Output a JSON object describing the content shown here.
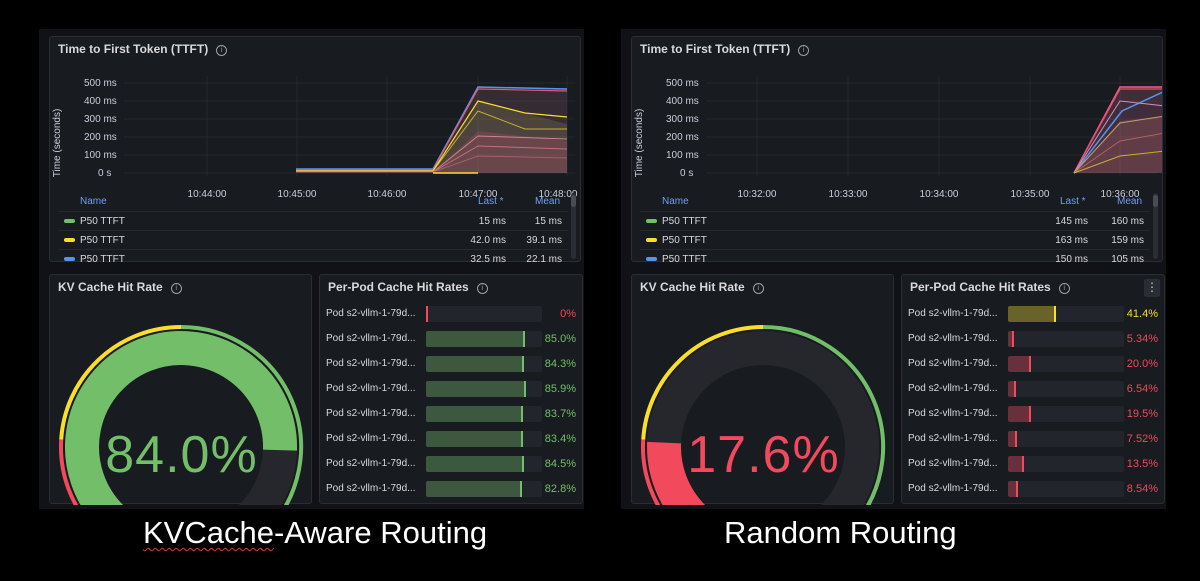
{
  "colors": {
    "green": "#73bf69",
    "yellow": "#fade2a",
    "red": "#f2495c",
    "blue": "#5794f2",
    "legend_header": "#6e9fff"
  },
  "dashboards": [
    {
      "id": "kvcache",
      "ttft": {
        "title": "Time to First Token (TTFT)",
        "y_label": "Time (seconds)",
        "y_ticks": [
          "500 ms",
          "400 ms",
          "300 ms",
          "200 ms",
          "100 ms",
          "0 s"
        ],
        "x_ticks": [
          "10:44:00",
          "10:45:00",
          "10:46:00",
          "10:47:00",
          "10:48:00"
        ],
        "legend": {
          "col_name": "Name",
          "col_last": "Last *",
          "col_mean": "Mean",
          "rows": [
            {
              "name": "P50 TTFT",
              "last": "15 ms",
              "mean": "15 ms",
              "color": "#73bf69"
            },
            {
              "name": "P50 TTFT",
              "last": "42.0 ms",
              "mean": "39.1 ms",
              "color": "#fade2a"
            },
            {
              "name": "P50 TTFT",
              "last": "32.5 ms",
              "mean": "22.1 ms",
              "color": "#5794f2"
            }
          ]
        }
      },
      "kv": {
        "title": "KV Cache Hit Rate",
        "value": "84.0%",
        "fraction": 0.84,
        "color": "#73bf69"
      },
      "pods": {
        "title": "Per-Pod Cache Hit Rates",
        "rows": [
          {
            "label": "Pod s2-vllm-1-79d...",
            "value": "0%",
            "pct": 0,
            "color": "#f2495c"
          },
          {
            "label": "Pod s2-vllm-1-79d...",
            "value": "85.0%",
            "pct": 85.0,
            "color": "#73bf69"
          },
          {
            "label": "Pod s2-vllm-1-79d...",
            "value": "84.3%",
            "pct": 84.3,
            "color": "#73bf69"
          },
          {
            "label": "Pod s2-vllm-1-79d...",
            "value": "85.9%",
            "pct": 85.9,
            "color": "#73bf69"
          },
          {
            "label": "Pod s2-vllm-1-79d...",
            "value": "83.7%",
            "pct": 83.7,
            "color": "#73bf69"
          },
          {
            "label": "Pod s2-vllm-1-79d...",
            "value": "83.4%",
            "pct": 83.4,
            "color": "#73bf69"
          },
          {
            "label": "Pod s2-vllm-1-79d...",
            "value": "84.5%",
            "pct": 84.5,
            "color": "#73bf69"
          },
          {
            "label": "Pod s2-vllm-1-79d...",
            "value": "82.8%",
            "pct": 82.8,
            "color": "#73bf69"
          }
        ]
      },
      "caption": "KVCache-Aware Routing",
      "caption_underlined": "KVCache",
      "caption_rest": "-Aware Routing"
    },
    {
      "id": "random",
      "ttft": {
        "title": "Time to First Token (TTFT)",
        "y_label": "Time (seconds)",
        "y_ticks": [
          "500 ms",
          "400 ms",
          "300 ms",
          "200 ms",
          "100 ms",
          "0 s"
        ],
        "x_ticks": [
          "10:32:00",
          "10:33:00",
          "10:34:00",
          "10:35:00",
          "10:36:00"
        ],
        "legend": {
          "col_name": "Name",
          "col_last": "Last *",
          "col_mean": "Mean",
          "rows": [
            {
              "name": "P50 TTFT",
              "last": "145 ms",
              "mean": "160 ms",
              "color": "#73bf69"
            },
            {
              "name": "P50 TTFT",
              "last": "163 ms",
              "mean": "159 ms",
              "color": "#fade2a"
            },
            {
              "name": "P50 TTFT",
              "last": "150 ms",
              "mean": "105 ms",
              "color": "#5794f2"
            }
          ]
        }
      },
      "kv": {
        "title": "KV Cache Hit Rate",
        "value": "17.6%",
        "fraction": 0.176,
        "color": "#f2495c"
      },
      "pods": {
        "title": "Per-Pod Cache Hit Rates",
        "rows": [
          {
            "label": "Pod s2-vllm-1-79d...",
            "value": "41.4%",
            "pct": 41.4,
            "color": "#fade2a"
          },
          {
            "label": "Pod s2-vllm-1-79d...",
            "value": "5.34%",
            "pct": 5.34,
            "color": "#f2495c"
          },
          {
            "label": "Pod s2-vllm-1-79d...",
            "value": "20.0%",
            "pct": 20.0,
            "color": "#f2495c"
          },
          {
            "label": "Pod s2-vllm-1-79d...",
            "value": "6.54%",
            "pct": 6.54,
            "color": "#f2495c"
          },
          {
            "label": "Pod s2-vllm-1-79d...",
            "value": "19.5%",
            "pct": 19.5,
            "color": "#f2495c"
          },
          {
            "label": "Pod s2-vllm-1-79d...",
            "value": "7.52%",
            "pct": 7.52,
            "color": "#f2495c"
          },
          {
            "label": "Pod s2-vllm-1-79d...",
            "value": "13.5%",
            "pct": 13.5,
            "color": "#f2495c"
          },
          {
            "label": "Pod s2-vllm-1-79d...",
            "value": "8.54%",
            "pct": 8.54,
            "color": "#f2495c"
          }
        ]
      },
      "caption": "Random Routing"
    }
  ]
}
